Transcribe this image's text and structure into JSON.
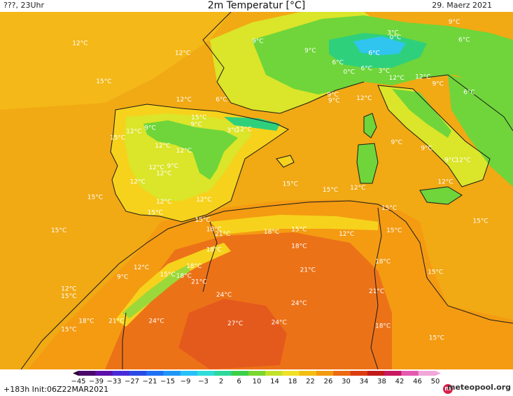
{
  "header": {
    "left": "???, 23Uhr",
    "title": "2m Temperatur [°C]",
    "date": "29. Maerz 2021"
  },
  "map_labels": [
    {
      "text": "12°C",
      "lon": -13.6,
      "lat": 46.2
    },
    {
      "text": "12°C",
      "lon": -5.4,
      "lat": 45.4
    },
    {
      "text": "9°C",
      "lon": 0.6,
      "lat": 46.4
    },
    {
      "text": "9°C",
      "lon": 4.8,
      "lat": 45.6
    },
    {
      "text": "6°C",
      "lon": 7.0,
      "lat": 44.6
    },
    {
      "text": "3°C",
      "lon": 11.4,
      "lat": 47.1
    },
    {
      "text": "0°C",
      "lon": 11.6,
      "lat": 46.7
    },
    {
      "text": "9°C",
      "lon": 16.3,
      "lat": 48.0
    },
    {
      "text": "6°C",
      "lon": 17.1,
      "lat": 46.5
    },
    {
      "text": "6°C",
      "lon": 9.9,
      "lat": 45.4
    },
    {
      "text": "0°C",
      "lon": 7.9,
      "lat": 43.8
    },
    {
      "text": "6°C",
      "lon": 9.3,
      "lat": 44.1
    },
    {
      "text": "3°C",
      "lon": 10.7,
      "lat": 43.9
    },
    {
      "text": "12°C",
      "lon": 11.7,
      "lat": 43.3
    },
    {
      "text": "12°C",
      "lon": 13.8,
      "lat": 43.4
    },
    {
      "text": "9°C",
      "lon": 15.0,
      "lat": 42.8
    },
    {
      "text": "6°C",
      "lon": 17.5,
      "lat": 42.1
    },
    {
      "text": "15°C",
      "lon": -11.7,
      "lat": 43.0
    },
    {
      "text": "12°C",
      "lon": -5.3,
      "lat": 41.5
    },
    {
      "text": "6°C",
      "lon": -2.3,
      "lat": 41.5
    },
    {
      "text": "9°C",
      "lon": 6.6,
      "lat": 41.9
    },
    {
      "text": "12°C",
      "lon": 9.1,
      "lat": 41.6
    },
    {
      "text": "9°C",
      "lon": 6.7,
      "lat": 41.4
    },
    {
      "text": "15°C",
      "lon": -4.1,
      "lat": 40.0
    },
    {
      "text": "9°C",
      "lon": -4.3,
      "lat": 39.4
    },
    {
      "text": "3°C",
      "lon": -1.4,
      "lat": 38.9
    },
    {
      "text": "12°C",
      "lon": -0.5,
      "lat": 39.0
    },
    {
      "text": "12°C",
      "lon": -9.3,
      "lat": 38.8
    },
    {
      "text": "9°C",
      "lon": -8.0,
      "lat": 39.1
    },
    {
      "text": "15°C",
      "lon": -10.6,
      "lat": 38.3
    },
    {
      "text": "12°C",
      "lon": -7.0,
      "lat": 37.6
    },
    {
      "text": "12°C",
      "lon": -5.3,
      "lat": 37.2
    },
    {
      "text": "9°C",
      "lon": 11.7,
      "lat": 37.9
    },
    {
      "text": "9°C",
      "lon": 14.1,
      "lat": 37.4
    },
    {
      "text": "9°C",
      "lon": 16.0,
      "lat": 36.4
    },
    {
      "text": "12°C",
      "lon": 17.0,
      "lat": 36.4
    },
    {
      "text": "12°C",
      "lon": -7.5,
      "lat": 35.8
    },
    {
      "text": "9°C",
      "lon": -6.2,
      "lat": 35.9
    },
    {
      "text": "12°C",
      "lon": -6.9,
      "lat": 35.3
    },
    {
      "text": "12°C",
      "lon": -9.0,
      "lat": 34.6
    },
    {
      "text": "15°C",
      "lon": 3.2,
      "lat": 34.4
    },
    {
      "text": "15°C",
      "lon": 6.4,
      "lat": 33.9
    },
    {
      "text": "12°C",
      "lon": 8.6,
      "lat": 34.1
    },
    {
      "text": "12°C",
      "lon": 15.6,
      "lat": 34.6
    },
    {
      "text": "15°C",
      "lon": -12.4,
      "lat": 33.3
    },
    {
      "text": "12°C",
      "lon": -6.9,
      "lat": 32.9
    },
    {
      "text": "12°C",
      "lon": -3.7,
      "lat": 33.1
    },
    {
      "text": "15°C",
      "lon": -7.6,
      "lat": 32.0
    },
    {
      "text": "15°C",
      "lon": -3.8,
      "lat": 31.4
    },
    {
      "text": "15°C",
      "lon": 11.1,
      "lat": 32.4
    },
    {
      "text": "15°C",
      "lon": 18.4,
      "lat": 31.3
    },
    {
      "text": "15°C",
      "lon": -15.3,
      "lat": 30.5
    },
    {
      "text": "18°C",
      "lon": -2.9,
      "lat": 30.6
    },
    {
      "text": "21°C",
      "lon": -2.2,
      "lat": 30.2
    },
    {
      "text": "18°C",
      "lon": 1.7,
      "lat": 30.4
    },
    {
      "text": "15°C",
      "lon": 3.9,
      "lat": 30.6
    },
    {
      "text": "12°C",
      "lon": 7.7,
      "lat": 30.2
    },
    {
      "text": "15°C",
      "lon": 11.5,
      "lat": 30.5
    },
    {
      "text": "18°C",
      "lon": 3.9,
      "lat": 29.2
    },
    {
      "text": "18°C",
      "lon": -2.9,
      "lat": 28.9
    },
    {
      "text": "18°C",
      "lon": 10.6,
      "lat": 27.9
    },
    {
      "text": "12°C",
      "lon": -8.7,
      "lat": 27.4
    },
    {
      "text": "18°C",
      "lon": -4.5,
      "lat": 27.5
    },
    {
      "text": "21°C",
      "lon": 4.6,
      "lat": 27.2
    },
    {
      "text": "15°C",
      "lon": 14.8,
      "lat": 27.0
    },
    {
      "text": "15°C",
      "lon": -6.6,
      "lat": 26.8
    },
    {
      "text": "18°C",
      "lon": -5.3,
      "lat": 26.7
    },
    {
      "text": "9°C",
      "lon": -10.2,
      "lat": 26.6
    },
    {
      "text": "21°C",
      "lon": -4.1,
      "lat": 26.2
    },
    {
      "text": "12°C",
      "lon": -14.5,
      "lat": 25.6
    },
    {
      "text": "15°C",
      "lon": -14.5,
      "lat": 25.0
    },
    {
      "text": "21°C",
      "lon": 10.1,
      "lat": 25.4
    },
    {
      "text": "24°C",
      "lon": -2.1,
      "lat": 25.1
    },
    {
      "text": "24°C",
      "lon": 3.9,
      "lat": 24.4
    },
    {
      "text": "18°C",
      "lon": -13.1,
      "lat": 22.9
    },
    {
      "text": "21°C",
      "lon": -10.7,
      "lat": 22.9
    },
    {
      "text": "24°C",
      "lon": -7.5,
      "lat": 22.9
    },
    {
      "text": "27°C",
      "lon": -1.2,
      "lat": 22.7
    },
    {
      "text": "24°C",
      "lon": 2.3,
      "lat": 22.8
    },
    {
      "text": "18°C",
      "lon": 10.6,
      "lat": 22.5
    },
    {
      "text": "15°C",
      "lon": -14.5,
      "lat": 22.2
    },
    {
      "text": "15°C",
      "lon": 14.9,
      "lat": 21.5
    }
  ],
  "legend": {
    "ticks": [
      "−45",
      "−39",
      "−33",
      "−27",
      "−21",
      "−15",
      "−9",
      "−3",
      "2",
      "6",
      "10",
      "14",
      "18",
      "22",
      "26",
      "30",
      "34",
      "38",
      "42",
      "46",
      "50"
    ],
    "colors": [
      "#2a0029",
      "#4b0a6b",
      "#5d10a8",
      "#4a2ad8",
      "#2a4ae6",
      "#1f6ff2",
      "#1f96f6",
      "#27c0f8",
      "#30ddd8",
      "#2ed89a",
      "#3dcf4a",
      "#7cd630",
      "#c4e12a",
      "#f1e028",
      "#f3bd12",
      "#f39a10",
      "#ec6a10",
      "#dc3d10",
      "#c21a1a",
      "#c81860",
      "#e45ab0",
      "#f2a7da"
    ],
    "init": "+183h Init:06Z22MAR2021",
    "brand": "meteopool.org",
    "logo_letter": "m"
  },
  "colors": {
    "sea": "#f1a914",
    "land_warm": "#f49b12",
    "land_hot": "#ec7218",
    "land_hotter": "#e45a1c",
    "mild": "#f6d21c",
    "cool": "#dbe529",
    "cooler": "#6fd53a",
    "cold": "#2fd07c",
    "freezing": "#2fc5ee",
    "coast": "#1a1a1a"
  }
}
